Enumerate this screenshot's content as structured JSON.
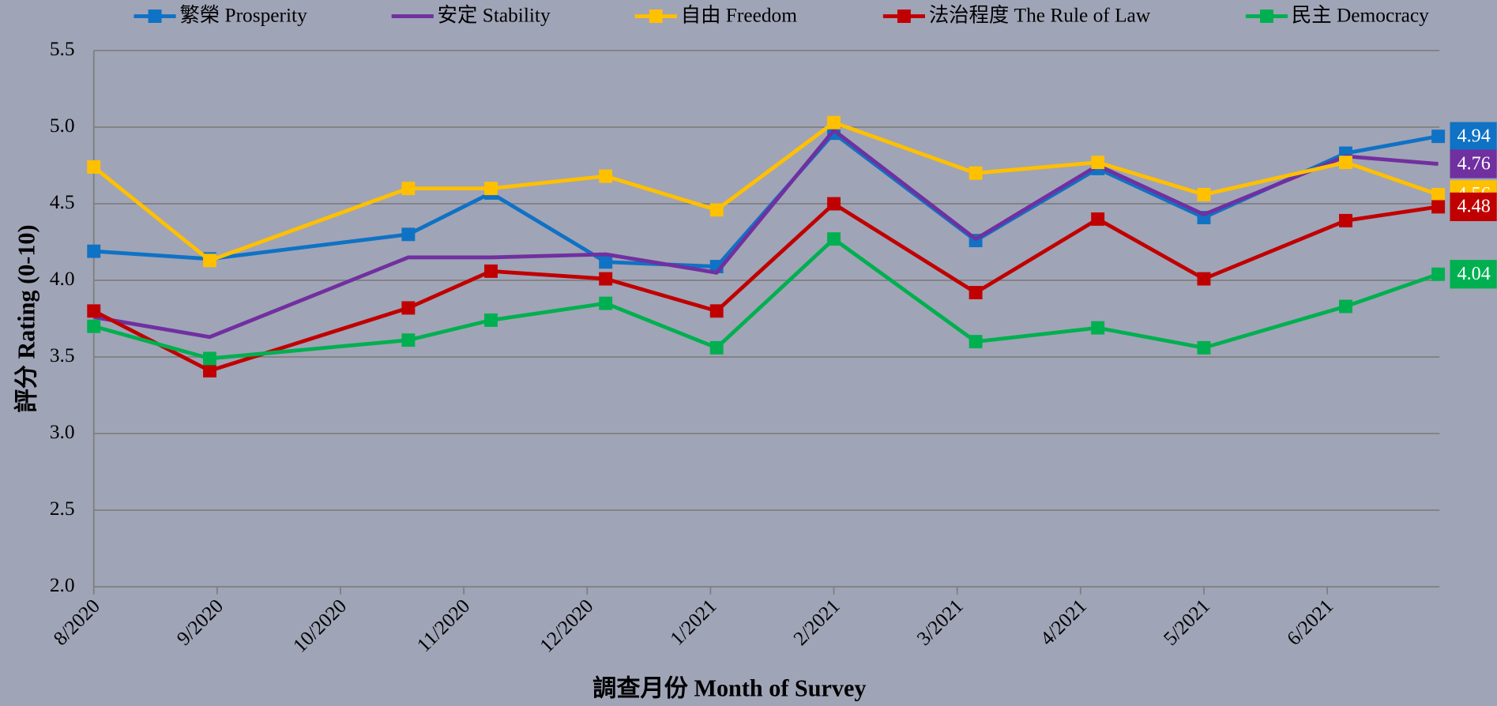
{
  "chart_data": {
    "type": "line",
    "y_label": "評分 Rating (0-10)",
    "x_label": "調查月份 Month of Survey",
    "x": [
      0,
      0.94,
      2.55,
      3.22,
      4.15,
      5.05,
      6.0,
      7.15,
      8.14,
      9.0,
      10.15,
      10.9
    ],
    "xlim": [
      0,
      10.91
    ],
    "xticks": [
      {
        "value": 0,
        "label": "8/2020"
      },
      {
        "value": 1,
        "label": "9/2020"
      },
      {
        "value": 2,
        "label": "10/2020"
      },
      {
        "value": 3,
        "label": "11/2020"
      },
      {
        "value": 4,
        "label": "12/2020"
      },
      {
        "value": 5,
        "label": "1/2021"
      },
      {
        "value": 6,
        "label": "2/2021"
      },
      {
        "value": 7,
        "label": "3/2021"
      },
      {
        "value": 8,
        "label": "4/2021"
      },
      {
        "value": 9,
        "label": "5/2021"
      },
      {
        "value": 10,
        "label": "6/2021"
      }
    ],
    "ylim": [
      2.0,
      5.5
    ],
    "yticks": [
      {
        "value": 2,
        "label": "2.0"
      },
      2.5,
      {
        "value": 3,
        "label": "3.0"
      },
      3.5,
      {
        "value": 4,
        "label": "4.0"
      },
      4.5,
      {
        "value": 5,
        "label": "5.0"
      },
      5.5
    ],
    "grid": true,
    "legend": "top",
    "series": [
      {
        "name": "繁榮 Prosperity",
        "color": "#0f72c4",
        "markers": true,
        "values": [
          4.19,
          4.14,
          4.3,
          4.57,
          4.12,
          4.09,
          4.96,
          4.26,
          4.73,
          4.41,
          4.83,
          4.94
        ]
      },
      {
        "name": "安定 Stability",
        "color": "#7030a0",
        "markers": false,
        "values": [
          3.76,
          3.63,
          4.15,
          4.15,
          4.17,
          4.05,
          4.98,
          4.27,
          4.75,
          4.43,
          4.81,
          4.76
        ]
      },
      {
        "name": "自由 Freedom",
        "color": "#ffc000",
        "markers": true,
        "values": [
          4.74,
          4.13,
          4.6,
          4.6,
          4.68,
          4.46,
          5.03,
          4.7,
          4.77,
          4.56,
          4.77,
          4.56
        ]
      },
      {
        "name": "法治程度 The Rule of Law",
        "color": "#c00000",
        "markers": true,
        "values": [
          3.8,
          3.41,
          3.82,
          4.06,
          4.01,
          3.8,
          4.5,
          3.92,
          4.4,
          4.01,
          4.39,
          4.48
        ]
      },
      {
        "name": "民主 Democracy",
        "color": "#00b050",
        "markers": true,
        "values": [
          3.7,
          3.49,
          3.61,
          3.74,
          3.85,
          3.56,
          4.27,
          3.6,
          3.69,
          3.56,
          3.83,
          4.04
        ]
      }
    ]
  }
}
